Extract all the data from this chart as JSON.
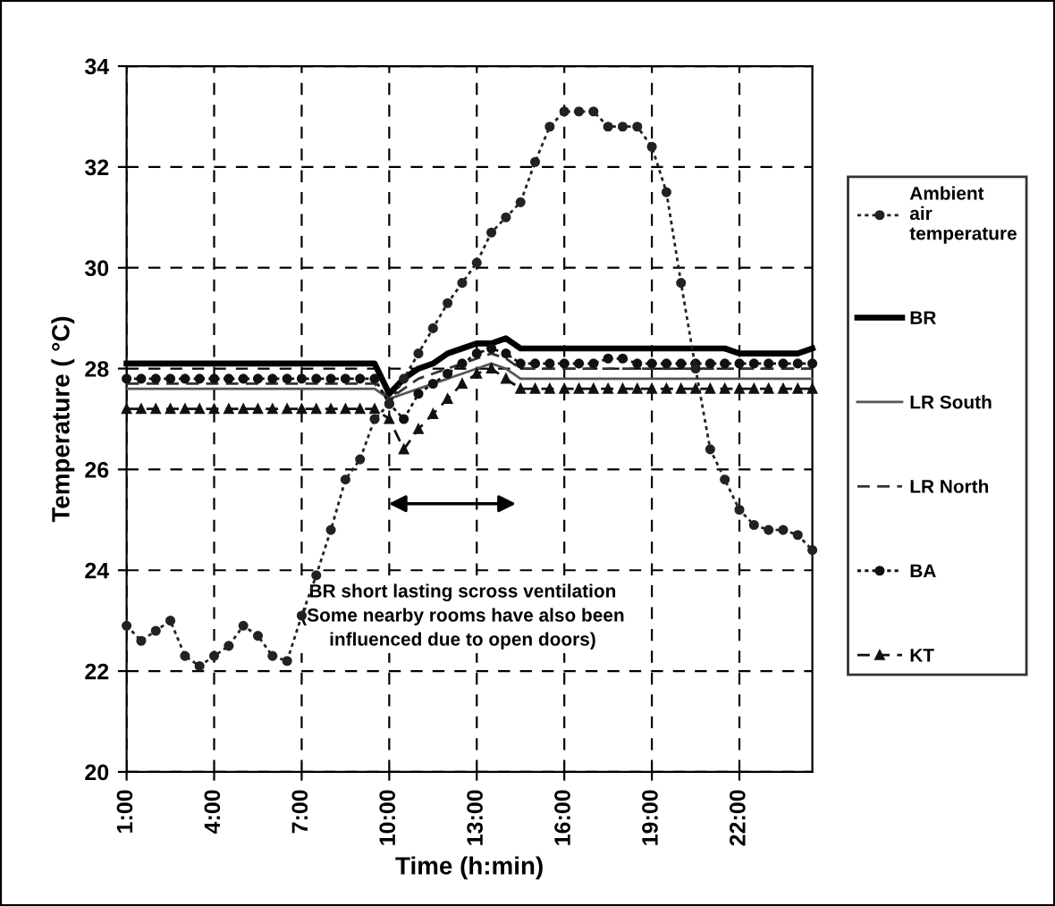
{
  "chart_data": {
    "type": "line",
    "xlabel": "Time (h:min)",
    "ylabel": "Temperature ( °C)",
    "x": [
      1,
      1.5,
      2,
      2.5,
      3,
      3.5,
      4,
      4.5,
      5,
      5.5,
      6,
      6.5,
      7,
      7.5,
      8,
      8.5,
      9,
      9.5,
      10,
      10.5,
      11,
      11.5,
      12,
      12.5,
      13,
      13.5,
      14,
      14.5,
      15,
      15.5,
      16,
      16.5,
      17,
      17.5,
      18,
      18.5,
      19,
      19.5,
      20,
      20.5,
      21,
      21.5,
      22,
      22.5,
      23,
      23.5,
      24,
      24.5
    ],
    "series": [
      {
        "name": "Ambient air temperature",
        "color": "#222222",
        "marker": "circle",
        "line_style": "dotted",
        "values": [
          22.9,
          22.6,
          22.8,
          23.0,
          22.3,
          22.1,
          22.3,
          22.5,
          22.9,
          22.7,
          22.3,
          22.2,
          23.1,
          23.9,
          24.8,
          25.8,
          26.2,
          27.0,
          27.3,
          27.8,
          28.3,
          28.8,
          29.3,
          29.7,
          30.1,
          30.7,
          31.0,
          31.3,
          32.1,
          32.8,
          33.1,
          33.1,
          33.1,
          32.8,
          32.8,
          32.8,
          32.4,
          31.5,
          29.7,
          28.0,
          26.4,
          25.8,
          25.2,
          24.9,
          24.8,
          24.8,
          24.7,
          24.4
        ]
      },
      {
        "name": "BR",
        "color": "#000000",
        "marker": "none",
        "line_style": "solid",
        "values": [
          28.1,
          28.1,
          28.1,
          28.1,
          28.1,
          28.1,
          28.1,
          28.1,
          28.1,
          28.1,
          28.1,
          28.1,
          28.1,
          28.1,
          28.1,
          28.1,
          28.1,
          28.1,
          27.5,
          27.8,
          28.0,
          28.1,
          28.3,
          28.4,
          28.5,
          28.5,
          28.6,
          28.4,
          28.4,
          28.4,
          28.4,
          28.4,
          28.4,
          28.4,
          28.4,
          28.4,
          28.4,
          28.4,
          28.4,
          28.4,
          28.4,
          28.4,
          28.3,
          28.3,
          28.3,
          28.3,
          28.3,
          28.4
        ]
      },
      {
        "name": "LR South",
        "color": "#555555",
        "marker": "none",
        "line_style": "solid",
        "values": [
          27.6,
          27.6,
          27.6,
          27.6,
          27.6,
          27.6,
          27.6,
          27.6,
          27.6,
          27.6,
          27.6,
          27.6,
          27.6,
          27.6,
          27.6,
          27.6,
          27.6,
          27.6,
          27.4,
          27.5,
          27.6,
          27.7,
          27.8,
          27.9,
          28.0,
          28.1,
          28.0,
          27.8,
          27.8,
          27.8,
          27.8,
          27.8,
          27.8,
          27.8,
          27.8,
          27.8,
          27.8,
          27.8,
          27.8,
          27.8,
          27.8,
          27.8,
          27.8,
          27.8,
          27.8,
          27.8,
          27.8,
          27.8
        ]
      },
      {
        "name": "LR North",
        "color": "#333333",
        "marker": "none",
        "line_style": "dashed",
        "values": [
          27.7,
          27.7,
          27.7,
          27.7,
          27.7,
          27.7,
          27.7,
          27.7,
          27.7,
          27.7,
          27.7,
          27.7,
          27.7,
          27.7,
          27.7,
          27.7,
          27.7,
          27.7,
          27.4,
          27.6,
          27.8,
          27.9,
          28.0,
          28.1,
          28.2,
          28.3,
          28.2,
          28.0,
          28.0,
          28.0,
          28.0,
          28.0,
          28.0,
          28.0,
          28.0,
          28.0,
          28.0,
          28.0,
          28.0,
          28.0,
          28.0,
          28.0,
          28.0,
          28.0,
          28.0,
          28.0,
          28.0,
          28.0
        ]
      },
      {
        "name": "BA",
        "color": "#111111",
        "marker": "circle",
        "line_style": "dotted",
        "values": [
          27.8,
          27.8,
          27.8,
          27.8,
          27.8,
          27.8,
          27.8,
          27.8,
          27.8,
          27.8,
          27.8,
          27.8,
          27.8,
          27.8,
          27.8,
          27.8,
          27.8,
          27.8,
          27.3,
          27.0,
          27.5,
          27.7,
          27.9,
          28.1,
          28.3,
          28.4,
          28.3,
          28.1,
          28.1,
          28.1,
          28.1,
          28.1,
          28.1,
          28.2,
          28.2,
          28.1,
          28.1,
          28.1,
          28.1,
          28.1,
          28.1,
          28.1,
          28.1,
          28.1,
          28.1,
          28.1,
          28.1,
          28.1
        ]
      },
      {
        "name": "KT",
        "color": "#111111",
        "marker": "triangle",
        "line_style": "dashed",
        "values": [
          27.2,
          27.2,
          27.2,
          27.2,
          27.2,
          27.2,
          27.2,
          27.2,
          27.2,
          27.2,
          27.2,
          27.2,
          27.2,
          27.2,
          27.2,
          27.2,
          27.2,
          27.2,
          27.0,
          26.4,
          26.8,
          27.1,
          27.4,
          27.7,
          27.9,
          28.0,
          27.8,
          27.6,
          27.6,
          27.6,
          27.6,
          27.6,
          27.6,
          27.6,
          27.6,
          27.6,
          27.6,
          27.6,
          27.6,
          27.6,
          27.6,
          27.6,
          27.6,
          27.6,
          27.6,
          27.6,
          27.6,
          27.6
        ]
      }
    ],
    "xlim": [
      1,
      24.5
    ],
    "xticks": [
      {
        "value": 1,
        "label": "1:00"
      },
      {
        "value": 4,
        "label": "4:00"
      },
      {
        "value": 7,
        "label": "7:00"
      },
      {
        "value": 10,
        "label": "10:00"
      },
      {
        "value": 13,
        "label": "13:00"
      },
      {
        "value": 16,
        "label": "16:00"
      },
      {
        "value": 19,
        "label": "19:00"
      },
      {
        "value": 22,
        "label": "22:00"
      }
    ],
    "ylim": [
      20,
      34
    ],
    "yticks": [
      20,
      22,
      24,
      26,
      28,
      30,
      32,
      34
    ],
    "grid": true,
    "legend": "right",
    "annotations": [
      "BR short lasting scross ventilation\n(Some nearby rooms have also been\ninfluenced due to open doors)"
    ]
  }
}
